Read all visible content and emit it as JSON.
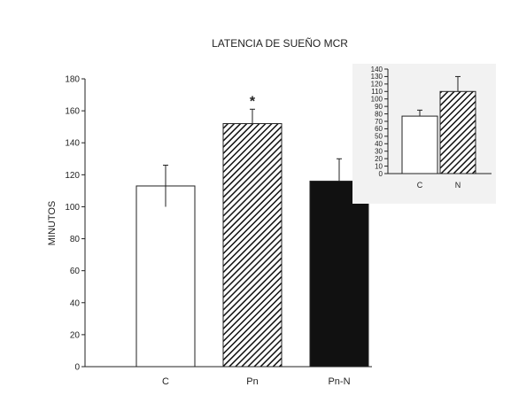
{
  "chart_data": [
    {
      "type": "bar",
      "title": "LATENCIA DE SUEÑO MCR",
      "ylabel": "MINUTOS",
      "xlabel": "",
      "categories": [
        "C",
        "Pn",
        "Pn-N"
      ],
      "values": [
        113,
        152,
        116
      ],
      "errors": [
        13,
        9,
        14
      ],
      "error_direction": [
        "both",
        "up",
        "up"
      ],
      "fills": [
        "white",
        "hatched",
        "black"
      ],
      "ylim": [
        0,
        180
      ],
      "yticks": [
        0,
        20,
        40,
        60,
        80,
        100,
        120,
        140,
        160,
        180
      ],
      "ytick_labels": [
        "0",
        "20",
        "40",
        "60",
        "80",
        "100",
        "120",
        "140",
        "160",
        "180"
      ],
      "annotations": [
        {
          "category": "Pn",
          "text": "*"
        }
      ],
      "grid": false,
      "legend": "none"
    },
    {
      "type": "bar",
      "title": "",
      "ylabel": "",
      "xlabel": "",
      "categories": [
        "C",
        "N"
      ],
      "values": [
        77,
        110
      ],
      "errors": [
        8,
        20
      ],
      "error_direction": [
        "up",
        "up"
      ],
      "fills": [
        "white",
        "hatched"
      ],
      "ylim": [
        0,
        140
      ],
      "yticks": [
        0,
        10,
        20,
        30,
        40,
        50,
        60,
        70,
        80,
        90,
        100,
        110,
        120,
        130,
        140
      ],
      "ytick_labels": [
        "0",
        "10",
        "20",
        "30",
        "40",
        "50",
        "60",
        "70",
        "80",
        "90",
        "100",
        "110",
        "120",
        "130",
        "140"
      ],
      "grid": false,
      "legend": "none"
    }
  ],
  "colors": {
    "axis": "#222222",
    "bar_dark": "#111111",
    "bar_light": "#ffffff",
    "panel": "#f2f2f2"
  }
}
